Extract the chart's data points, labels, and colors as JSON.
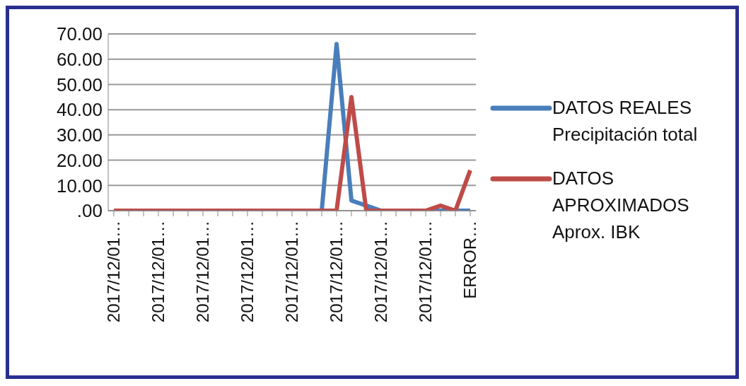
{
  "chart_data": {
    "type": "line",
    "categories": [
      "2017/12/01…",
      null,
      null,
      "2017/12/01…",
      null,
      null,
      "2017/12/01…",
      null,
      null,
      "2017/12/01…",
      null,
      null,
      "2017/12/01…",
      null,
      null,
      "2017/12/01…",
      null,
      null,
      "2017/12/01…",
      null,
      null,
      "2017/12/01…",
      null,
      null,
      "ERROR…"
    ],
    "series": [
      {
        "name": "DATOS REALES Precipitación total",
        "color": "#4a7ebb",
        "values": [
          null,
          null,
          null,
          null,
          null,
          null,
          null,
          null,
          null,
          null,
          null,
          null,
          null,
          null,
          0,
          66,
          4,
          2,
          0,
          null,
          null,
          0,
          0,
          0,
          0
        ]
      },
      {
        "name": "DATOS APROXIMADOS Aprox. IBK",
        "color": "#be4b48",
        "values": [
          0,
          0,
          0,
          0,
          0,
          0,
          0,
          0,
          0,
          0,
          0,
          0,
          0,
          0,
          0,
          0,
          45,
          0,
          0,
          0,
          0,
          0,
          2,
          0,
          16
        ]
      }
    ],
    "ylim": [
      0,
      70
    ],
    "yticks": [
      {
        "value": 0,
        "label": ".00"
      },
      {
        "value": 10,
        "label": "10.00"
      },
      {
        "value": 20,
        "label": "20.00"
      },
      {
        "value": 30,
        "label": "30.00"
      },
      {
        "value": 40,
        "label": "40.00"
      },
      {
        "value": 50,
        "label": "50.00"
      },
      {
        "value": 60,
        "label": "60.00"
      },
      {
        "value": 70,
        "label": "70.00"
      }
    ],
    "grid": "y",
    "legend": "right",
    "marker": "none",
    "line_style": "solid"
  }
}
